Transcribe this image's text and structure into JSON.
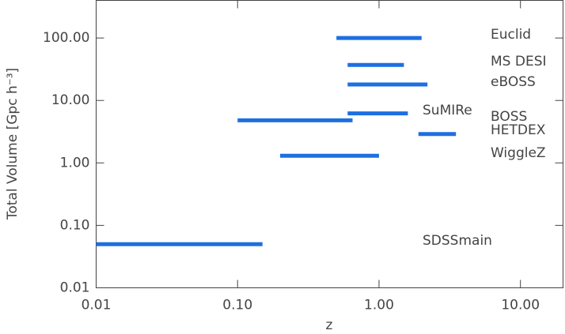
{
  "chart_data": {
    "type": "range",
    "xlabel": "z",
    "ylabel": "Total Volume [Gpc h⁻³]",
    "xscale": "log",
    "yscale": "log",
    "xlim": [
      0.01,
      20
    ],
    "ylim": [
      0.01,
      400
    ],
    "xticks": [
      0.01,
      {
        "value": 0.1,
        "label": "0.10"
      },
      {
        "value": 1,
        "label": "1.00"
      },
      {
        "value": 10,
        "label": "10.00"
      }
    ],
    "yticks": [
      0.01,
      {
        "value": 0.1,
        "label": "0.10"
      },
      {
        "value": 1,
        "label": "1.00"
      },
      {
        "value": 10,
        "label": "10.00"
      },
      {
        "value": 100,
        "label": "100.00"
      }
    ],
    "color": "#1e6fe0",
    "series": [
      {
        "name": "Euclid",
        "xmin": 0.5,
        "xmax": 2.0,
        "value": 100
      },
      {
        "name": "MS DESI",
        "xmin": 0.6,
        "xmax": 1.5,
        "value": 37
      },
      {
        "name": "eBOSS",
        "xmin": 0.6,
        "xmax": 2.2,
        "value": 18
      },
      {
        "name": "SuMIRe",
        "xmin": 0.6,
        "xmax": 1.6,
        "value": 6.2
      },
      {
        "name": "BOSS",
        "xmin": 0.1,
        "xmax": 0.65,
        "value": 4.8
      },
      {
        "name": "HETDEX",
        "xmin": 1.9,
        "xmax": 3.5,
        "value": 2.9
      },
      {
        "name": "WiggleZ",
        "xmin": 0.2,
        "xmax": 1.0,
        "value": 1.3
      },
      {
        "name": "SDSSmain",
        "xmin": 0.01,
        "xmax": 0.15,
        "value": 0.05
      }
    ]
  }
}
